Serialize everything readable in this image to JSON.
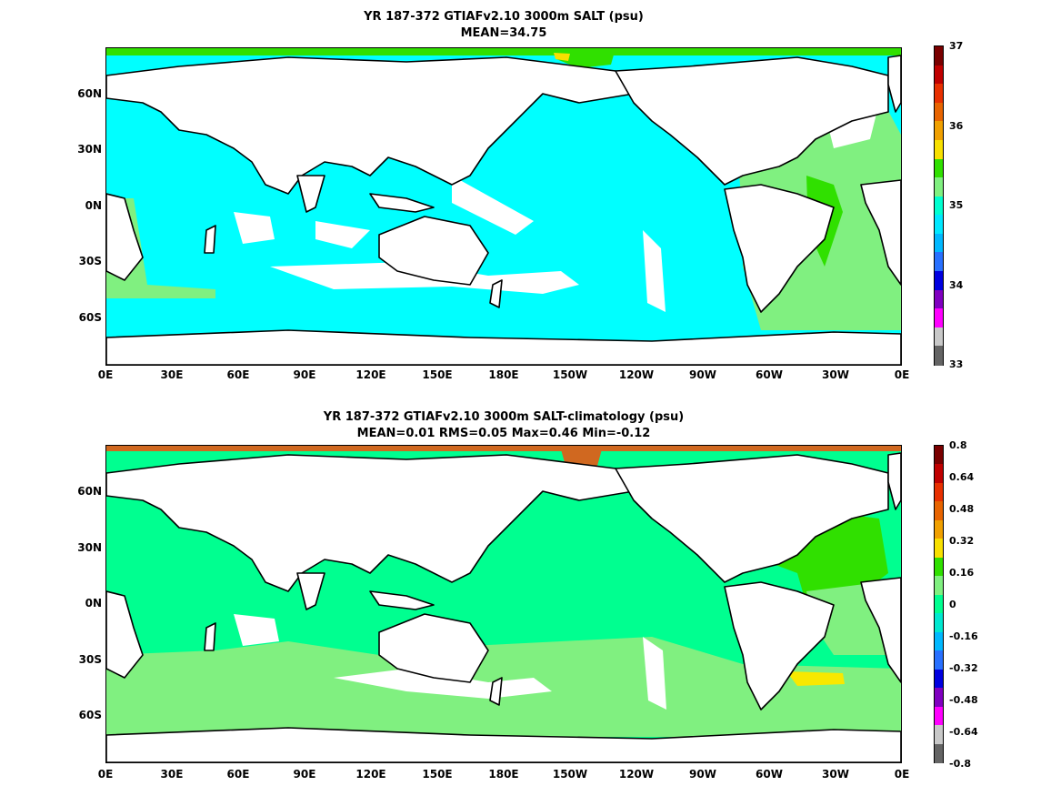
{
  "top": {
    "title_line1": "YR 187-372 GTIAFv2.10 3000m SALT (psu)",
    "title_line2": "MEAN=34.75",
    "colorbar": {
      "labels": [
        "37",
        "36",
        "35",
        "34",
        "33"
      ],
      "colors": [
        "#7a0000",
        "#c00000",
        "#e83000",
        "#e86400",
        "#f0a000",
        "#f8e000",
        "#30e000",
        "#80f080",
        "#00ffd0",
        "#00e8ff",
        "#00b8ff",
        "#2870ff",
        "#0000e0",
        "#8000c0",
        "#ff00ff",
        "#c8c8c8",
        "#646464"
      ]
    }
  },
  "bottom": {
    "title_line1": "YR 187-372 GTIAFv2.10 3000m SALT-climatology (psu)",
    "title_line2": "MEAN=0.01   RMS=0.05   Max=0.46   Min=-0.12",
    "colorbar": {
      "labels": [
        "0.8",
        "0.64",
        "0.48",
        "0.32",
        "0.16",
        "0",
        "-0.16",
        "-0.32",
        "-0.48",
        "-0.64",
        "-0.8"
      ],
      "colors": [
        "#7a0000",
        "#c00000",
        "#e83000",
        "#e86400",
        "#f0a000",
        "#f8e000",
        "#30e000",
        "#80f080",
        "#00ff90",
        "#00e8d0",
        "#00b8ff",
        "#2870ff",
        "#0000e0",
        "#8000c0",
        "#ff00ff",
        "#c8c8c8",
        "#646464"
      ]
    }
  },
  "axes": {
    "lat_labels": [
      "60N",
      "30N",
      "0N",
      "30S",
      "60S"
    ],
    "lon_labels": [
      "0E",
      "30E",
      "60E",
      "90E",
      "120E",
      "150E",
      "180E",
      "150W",
      "120W",
      "90W",
      "60W",
      "30W",
      "0E"
    ]
  },
  "colors": {
    "fill_cyan": "#00ffff",
    "fill_green": "#80f080",
    "fill_bright_green": "#30e000",
    "fill_spring": "#00ff90",
    "fill_yellow": "#f8e800",
    "fill_orange": "#d06820",
    "land": "#ffffff",
    "coast": "#000000"
  }
}
